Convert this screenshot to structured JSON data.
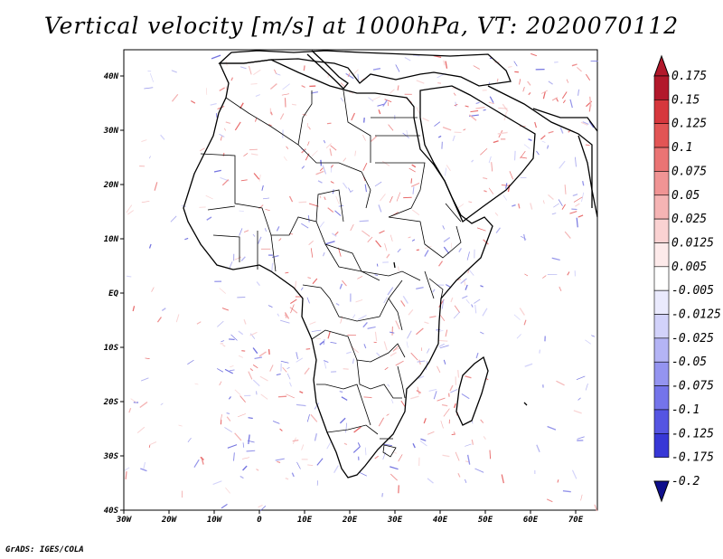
{
  "title": "Vertical velocity [m/s] at 1000hPa, VT: 2020070112",
  "credit": "GrADS: IGES/COLA",
  "map": {
    "lon_labels": [
      "30W",
      "20W",
      "10W",
      "0",
      "10E",
      "20E",
      "30E",
      "40E",
      "50E",
      "60E",
      "70E"
    ],
    "lat_labels": [
      "40N",
      "30N",
      "20N",
      "10N",
      "EQ",
      "10S",
      "20S",
      "30S",
      "40S"
    ]
  },
  "colorbar": {
    "labels": [
      "0.175",
      "0.15",
      "0.125",
      "0.1",
      "0.075",
      "0.05",
      "0.025",
      "0.0125",
      "0.005",
      "-0.005",
      "-0.0125",
      "-0.025",
      "-0.05",
      "-0.075",
      "-0.1",
      "-0.125",
      "-0.175",
      "-0.2"
    ],
    "colors": [
      "#b2182b",
      "#d6373d",
      "#e25555",
      "#ea7474",
      "#f09494",
      "#f5b4b4",
      "#fad2d2",
      "#fdeaea",
      "#ffffff",
      "#eaeafd",
      "#d2d2fa",
      "#b4b4f5",
      "#9494f0",
      "#7474ea",
      "#5555e2",
      "#3737d6",
      "#1e1eb4",
      "#0f0f8c"
    ]
  }
}
